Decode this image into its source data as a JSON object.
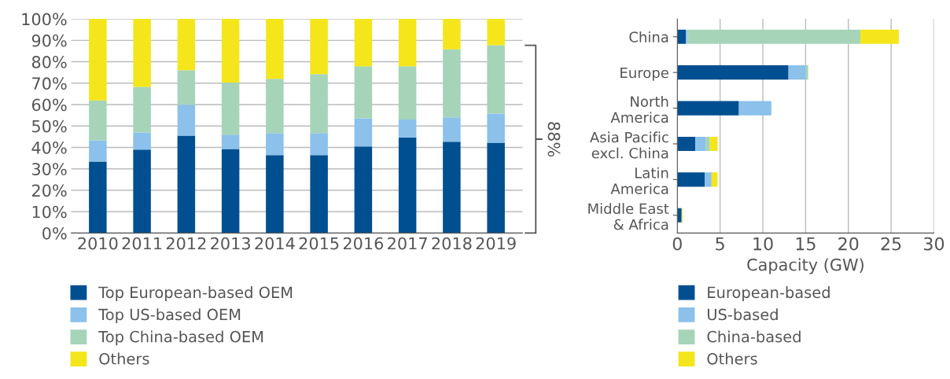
{
  "chart_data": [
    {
      "type": "bar",
      "stacked": true,
      "categories": [
        "2010",
        "2011",
        "2012",
        "2013",
        "2014",
        "2015",
        "2016",
        "2017",
        "2018",
        "2019"
      ],
      "series": [
        {
          "name": "Top European-based OEM",
          "color": "#004f90",
          "values": [
            33.4,
            39.0,
            45.5,
            39.3,
            36.4,
            36.4,
            40.5,
            44.7,
            42.7,
            42.2
          ]
        },
        {
          "name": "Top US-based OEM",
          "color": "#8bc1ea",
          "values": [
            9.9,
            8.0,
            14.4,
            6.7,
            10.3,
            10.3,
            13.1,
            8.3,
            11.3,
            13.6
          ]
        },
        {
          "name": "Top China-based OEM",
          "color": "#a5d4b8",
          "values": [
            18.6,
            21.3,
            16.2,
            24.3,
            25.3,
            27.5,
            24.3,
            24.9,
            31.8,
            31.9
          ]
        },
        {
          "name": "Others",
          "color": "#f4e61a",
          "values": [
            38.1,
            31.7,
            23.9,
            29.7,
            28.0,
            25.8,
            22.1,
            22.1,
            14.2,
            12.3
          ]
        }
      ],
      "ylim": [
        0,
        100
      ],
      "yticks": [
        {
          "value": 0,
          "label": "0%"
        },
        {
          "value": 10,
          "label": "10%"
        },
        {
          "value": 20,
          "label": "20%"
        },
        {
          "value": 30,
          "label": "30%"
        },
        {
          "value": 40,
          "label": "40%"
        },
        {
          "value": 50,
          "label": "50%"
        },
        {
          "value": 60,
          "label": "60%"
        },
        {
          "value": 70,
          "label": "70%"
        },
        {
          "value": 80,
          "label": "80%"
        },
        {
          "value": 90,
          "label": "90%"
        },
        {
          "value": 100,
          "label": "100%"
        }
      ],
      "grid": "y",
      "legend": "bottom",
      "annotations": [
        "88%"
      ]
    },
    {
      "type": "bar",
      "stacked": true,
      "orientation": "horizontal",
      "categories": [
        "China",
        "Europe",
        "North\nAmerica",
        "Asia Pacific\nexcl. China",
        "Latin\nAmerica",
        "Middle East\n& Africa"
      ],
      "series": [
        {
          "name": "European-based",
          "color": "#004f90",
          "values": [
            1.0,
            13.0,
            7.2,
            2.1,
            3.2,
            0.5
          ]
        },
        {
          "name": "US-based",
          "color": "#8bc1ea",
          "values": [
            0.2,
            2.0,
            3.8,
            1.2,
            0.8,
            0
          ]
        },
        {
          "name": "China-based",
          "color": "#a5d4b8",
          "values": [
            20.2,
            0.3,
            0,
            0.5,
            0,
            0
          ]
        },
        {
          "name": "Others",
          "color": "#f4e61a",
          "values": [
            4.5,
            0,
            0,
            0.9,
            0.7,
            0.1
          ]
        }
      ],
      "xlim": [
        0,
        30
      ],
      "xticks": [
        0,
        5,
        10,
        15,
        20,
        25,
        30
      ],
      "xlabel": "Capacity (GW)",
      "grid": "x",
      "legend": "bottom"
    }
  ]
}
